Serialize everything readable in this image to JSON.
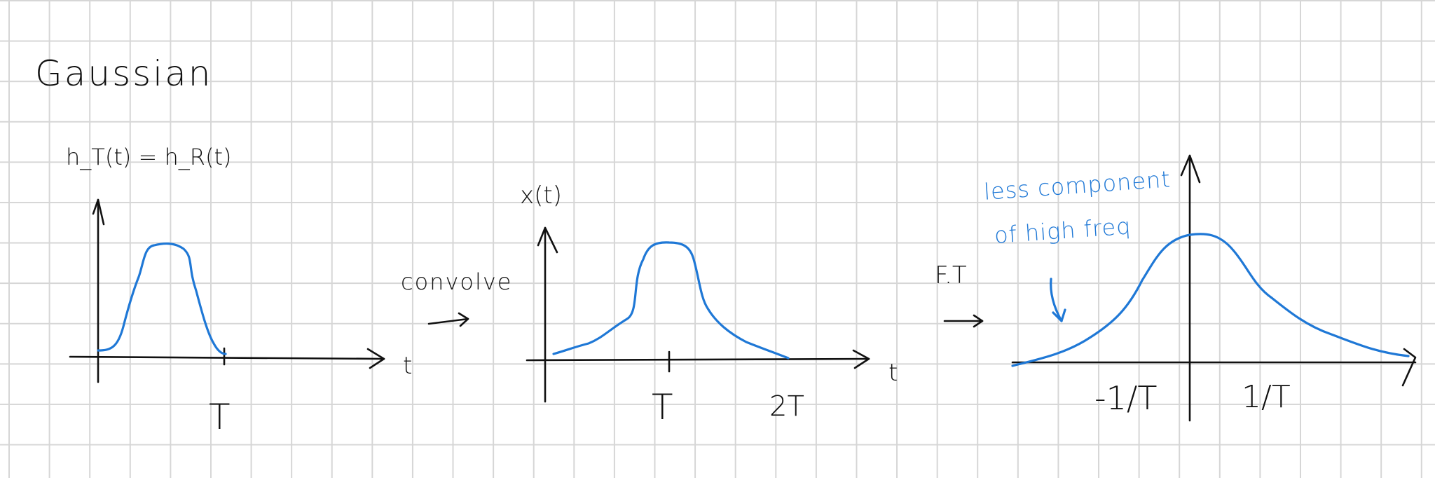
{
  "title": "Gaussian",
  "panel1": {
    "ylabel": "h_T(t) = h_R(t)",
    "xlabel": "t",
    "tick": "T"
  },
  "op1": {
    "label": "convolve"
  },
  "panel2": {
    "ylabel": "x(t)",
    "xlabel": "t",
    "tick1": "T",
    "tick2": "2T"
  },
  "op2": {
    "label": "F.T"
  },
  "panel3": {
    "tick_neg": "-1/T",
    "tick_pos": "1/T"
  },
  "annotation": {
    "line1": "less component",
    "line2": "of high freq"
  },
  "colors": {
    "ink": "#111111",
    "curve": "#1f78d6",
    "grid": "#d6d6d6",
    "paper": "#ffffff"
  },
  "arrow_icon": "right-arrow-icon"
}
